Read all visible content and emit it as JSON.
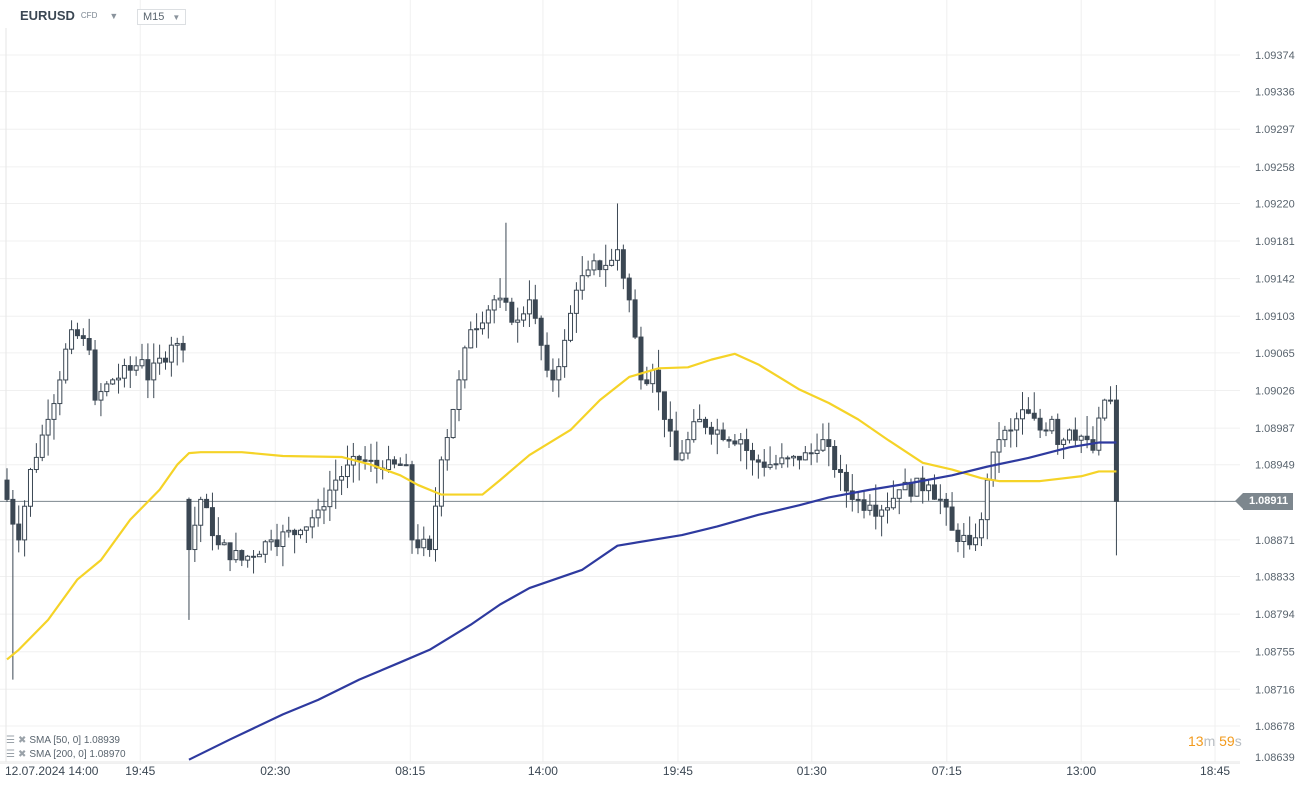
{
  "header": {
    "symbol": "EURUSD",
    "type": "CFD",
    "timeframe": "M15"
  },
  "indicators": [
    {
      "label": "SMA [50, 0] 1.08939",
      "color": "#f5d327"
    },
    {
      "label": "SMA [200, 0] 1.08970",
      "color": "#2e3a9f"
    }
  ],
  "current_price": "1.08911",
  "countdown": {
    "min": "13",
    "min_unit": "m",
    "sec": "59",
    "sec_unit": "s"
  },
  "colors": {
    "candle": "#3b4753",
    "grid": "#f0f0f0",
    "price_line": "#7d878e"
  },
  "chart_data": {
    "type": "candlestick",
    "ylim": [
      1.0862,
      1.094
    ],
    "price_ticks": [
      "1.09374",
      "1.09336",
      "1.09297",
      "1.09258",
      "1.09220",
      "1.09181",
      "1.09142",
      "1.09103",
      "1.09065",
      "1.09026",
      "1.08987",
      "1.08949",
      "1.08871",
      "1.08833",
      "1.08794",
      "1.08755",
      "1.08716",
      "1.08678",
      "1.08639"
    ],
    "time_ticks": [
      {
        "label": "12.07.2024  14:00",
        "index": -0.3
      },
      {
        "label": "19:45",
        "index": 22.7
      },
      {
        "label": "02:30",
        "index": 45.7
      },
      {
        "label": "08:15",
        "index": 68.7
      },
      {
        "label": "14:00",
        "index": 91.3
      },
      {
        "label": "19:45",
        "index": 114.3
      },
      {
        "label": "01:30",
        "index": 137.1
      },
      {
        "label": "07:15",
        "index": 160.1
      },
      {
        "label": "13:00",
        "index": 183.0
      },
      {
        "label": "18:45",
        "index": 205.8
      }
    ],
    "close_points": [
      [
        0,
        1.08913
      ],
      [
        2,
        1.08871
      ],
      [
        4,
        1.08944
      ],
      [
        7,
        1.08996
      ],
      [
        11,
        1.09089
      ],
      [
        14,
        1.09068
      ],
      [
        15,
        1.09016
      ],
      [
        18,
        1.09037
      ],
      [
        21,
        1.09047
      ],
      [
        23,
        1.09058
      ],
      [
        24,
        1.09037
      ],
      [
        28,
        1.09073
      ],
      [
        30,
        1.09068
      ],
      [
        31,
        1.08861
      ],
      [
        33,
        1.08913
      ],
      [
        36,
        1.08866
      ],
      [
        40,
        1.0885
      ],
      [
        45,
        1.08871
      ],
      [
        50,
        1.08881
      ],
      [
        53,
        1.08902
      ],
      [
        56,
        1.08933
      ],
      [
        60,
        1.08954
      ],
      [
        64,
        1.08944
      ],
      [
        68,
        1.08949
      ],
      [
        69,
        1.08871
      ],
      [
        72,
        1.08861
      ],
      [
        74,
        1.08954
      ],
      [
        77,
        1.09037
      ],
      [
        79,
        1.09089
      ],
      [
        83,
        1.0912
      ],
      [
        87,
        1.09099
      ],
      [
        89,
        1.0912
      ],
      [
        92,
        1.09047
      ],
      [
        93,
        1.09037
      ],
      [
        95,
        1.09078
      ],
      [
        97,
        1.0913
      ],
      [
        99,
        1.09151
      ],
      [
        103,
        1.09161
      ],
      [
        104,
        1.09172
      ],
      [
        106,
        1.0912
      ],
      [
        108,
        1.09037
      ],
      [
        110,
        1.09047
      ],
      [
        112,
        1.08996
      ],
      [
        114,
        1.08954
      ],
      [
        116,
        1.08975
      ],
      [
        118,
        1.08996
      ],
      [
        121,
        1.08985
      ],
      [
        125,
        1.08975
      ],
      [
        127,
        1.08954
      ],
      [
        130,
        1.08949
      ],
      [
        135,
        1.08954
      ],
      [
        138,
        1.08964
      ],
      [
        139,
        1.08975
      ],
      [
        141,
        1.08944
      ],
      [
        144,
        1.08913
      ],
      [
        147,
        1.08907
      ],
      [
        149,
        1.08902
      ],
      [
        152,
        1.08923
      ],
      [
        157,
        1.08928
      ],
      [
        159,
        1.08913
      ],
      [
        161,
        1.08881
      ],
      [
        164,
        1.08866
      ],
      [
        166,
        1.08892
      ],
      [
        167,
        1.08933
      ],
      [
        169,
        1.08975
      ],
      [
        171,
        1.08985
      ],
      [
        173,
        1.09006
      ],
      [
        176,
        1.08985
      ],
      [
        178,
        1.08996
      ],
      [
        179,
        1.0897
      ],
      [
        181,
        1.08985
      ],
      [
        184,
        1.08975
      ],
      [
        185,
        1.08964
      ],
      [
        187,
        1.09016
      ],
      [
        188,
        1.09016
      ],
      [
        189,
        1.08911
      ]
    ],
    "notable_extremes": [
      {
        "index": 1,
        "low": 1.08726
      },
      {
        "index": 31,
        "low": 1.08788
      },
      {
        "index": 104,
        "high": 1.0922
      },
      {
        "index": 85,
        "high": 1.092
      },
      {
        "index": 189,
        "low": 1.08855
      }
    ],
    "sma50": [
      [
        0,
        1.08747
      ],
      [
        2,
        1.08757
      ],
      [
        7,
        1.08788
      ],
      [
        12,
        1.0883
      ],
      [
        16,
        1.0885
      ],
      [
        21,
        1.08892
      ],
      [
        26,
        1.08923
      ],
      [
        29,
        1.08949
      ],
      [
        31,
        1.08961
      ],
      [
        33,
        1.08962
      ],
      [
        40,
        1.08962
      ],
      [
        47,
        1.08958
      ],
      [
        57,
        1.08957
      ],
      [
        62,
        1.08949
      ],
      [
        67,
        1.08938
      ],
      [
        70,
        1.08928
      ],
      [
        74,
        1.08918
      ],
      [
        81,
        1.08918
      ],
      [
        84,
        1.08933
      ],
      [
        89,
        1.08959
      ],
      [
        96,
        1.08985
      ],
      [
        101,
        1.09016
      ],
      [
        106,
        1.0904
      ],
      [
        111,
        1.09049
      ],
      [
        116,
        1.0905
      ],
      [
        120,
        1.09058
      ],
      [
        124,
        1.09064
      ],
      [
        128,
        1.09053
      ],
      [
        135,
        1.09027
      ],
      [
        140,
        1.09013
      ],
      [
        145,
        1.08996
      ],
      [
        150,
        1.08975
      ],
      [
        156,
        1.08951
      ],
      [
        161,
        1.08944
      ],
      [
        166,
        1.08935
      ],
      [
        169,
        1.08932
      ],
      [
        176,
        1.08932
      ],
      [
        183,
        1.08937
      ],
      [
        186,
        1.08942
      ],
      [
        189,
        1.08942
      ]
    ],
    "sma200": [
      [
        31,
        1.08643
      ],
      [
        38,
        1.08664
      ],
      [
        47,
        1.0869
      ],
      [
        53,
        1.08705
      ],
      [
        60,
        1.08726
      ],
      [
        67,
        1.08744
      ],
      [
        72,
        1.08757
      ],
      [
        79,
        1.08783
      ],
      [
        84,
        1.08804
      ],
      [
        89,
        1.08821
      ],
      [
        98,
        1.0884
      ],
      [
        104,
        1.08865
      ],
      [
        115,
        1.08876
      ],
      [
        121,
        1.08885
      ],
      [
        128,
        1.08897
      ],
      [
        135,
        1.08907
      ],
      [
        140,
        1.08915
      ],
      [
        147,
        1.08923
      ],
      [
        154,
        1.0893
      ],
      [
        161,
        1.08938
      ],
      [
        167,
        1.08947
      ],
      [
        174,
        1.08956
      ],
      [
        181,
        1.08967
      ],
      [
        186,
        1.08972
      ],
      [
        189,
        1.08972
      ]
    ]
  }
}
